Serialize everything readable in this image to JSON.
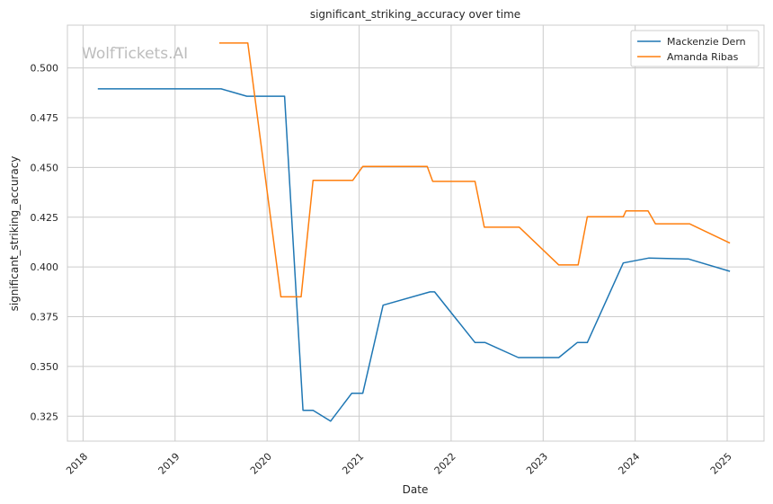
{
  "chart_data": {
    "type": "line",
    "title": "significant_striking_accuracy over time",
    "xlabel": "Date",
    "ylabel": "significant_striking_accuracy",
    "watermark": "WolfTickets.AI",
    "xlim": [
      2017.83,
      2025.4
    ],
    "ylim": [
      0.3125,
      0.5215
    ],
    "x_ticks": [
      2018,
      2019,
      2020,
      2021,
      2022,
      2023,
      2024,
      2025
    ],
    "x_tick_labels": [
      "2018",
      "2019",
      "2020",
      "2021",
      "2022",
      "2023",
      "2024",
      "2025"
    ],
    "y_ticks": [
      0.325,
      0.35,
      0.375,
      0.4,
      0.425,
      0.45,
      0.475,
      0.5
    ],
    "y_tick_labels": [
      "0.325",
      "0.350",
      "0.375",
      "0.400",
      "0.425",
      "0.450",
      "0.475",
      "0.500"
    ],
    "grid": true,
    "legend_position": "top-right",
    "colors": {
      "Mackenzie Dern": "#1f77b4",
      "Amanda Ribas": "#ff7f0e",
      "grid": "#cccccc"
    },
    "series": [
      {
        "name": "Mackenzie Dern",
        "color": "#1f77b4",
        "x": [
          2018.16,
          2019.5,
          2019.78,
          2020.02,
          2020.19,
          2020.39,
          2020.5,
          2020.69,
          2020.92,
          2021.04,
          2021.26,
          2021.77,
          2021.82,
          2022.26,
          2022.37,
          2022.73,
          2023.17,
          2023.37,
          2023.48,
          2023.87,
          2024.15,
          2024.58,
          2025.03
        ],
        "y": [
          0.4895,
          0.4895,
          0.4858,
          0.4858,
          0.4858,
          0.328,
          0.328,
          0.3225,
          0.3365,
          0.3365,
          0.3808,
          0.3875,
          0.3875,
          0.362,
          0.362,
          0.3545,
          0.3545,
          0.362,
          0.362,
          0.402,
          0.4045,
          0.404,
          0.3978
        ]
      },
      {
        "name": "Amanda Ribas",
        "color": "#ff7f0e",
        "x": [
          2019.48,
          2019.79,
          2020.15,
          2020.37,
          2020.5,
          2020.93,
          2021.04,
          2021.74,
          2021.8,
          2022.26,
          2022.36,
          2022.74,
          2023.17,
          2023.38,
          2023.48,
          2023.87,
          2023.9,
          2024.14,
          2024.22,
          2024.59,
          2025.03
        ],
        "y": [
          0.5125,
          0.5125,
          0.385,
          0.385,
          0.4435,
          0.4435,
          0.4505,
          0.4505,
          0.443,
          0.443,
          0.42,
          0.42,
          0.401,
          0.401,
          0.4252,
          0.4252,
          0.4282,
          0.4282,
          0.4217,
          0.4217,
          0.412
        ]
      }
    ]
  }
}
